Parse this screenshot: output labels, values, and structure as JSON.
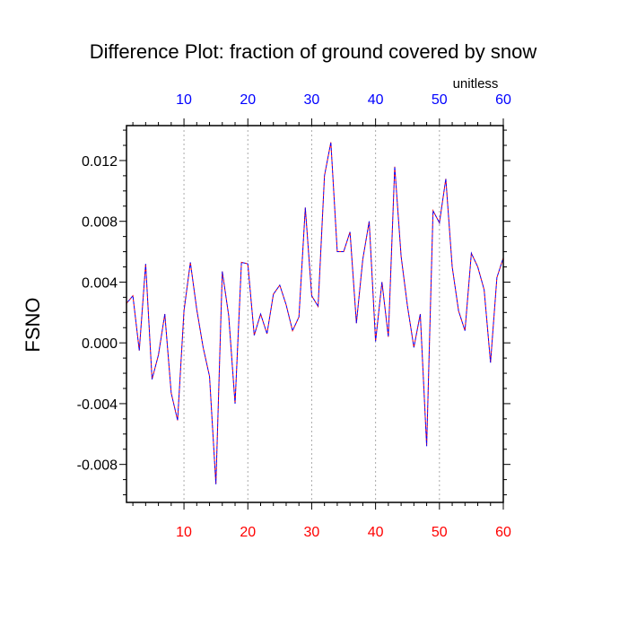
{
  "chart_data": {
    "type": "line",
    "title": "Difference Plot: fraction of ground covered by snow",
    "ylabel": "FSNO",
    "units_label": "unitless",
    "xlim": [
      1,
      60
    ],
    "ylim": [
      -0.0105,
      0.0143
    ],
    "xticks": [
      10,
      20,
      30,
      40,
      50,
      60
    ],
    "xtick_labels": [
      "10",
      "20",
      "30",
      "40",
      "50",
      "60"
    ],
    "yticks": [
      -0.008,
      -0.004,
      0.0,
      0.004,
      0.008,
      0.012
    ],
    "ytick_labels": [
      "-0.008",
      "-0.004",
      "0.000",
      "0.004",
      "0.008",
      "0.012"
    ],
    "grid": "vertical dotted at x major ticks",
    "colors": {
      "top_axis_labels": "#0000ff",
      "bottom_axis_labels": "#ff0000",
      "series_1": "#ff0000",
      "series_2": "#0000ff",
      "grid": "#aaaaaa",
      "frame": "#000000"
    },
    "x": [
      1,
      2,
      3,
      4,
      5,
      6,
      7,
      8,
      9,
      10,
      11,
      12,
      13,
      14,
      15,
      16,
      17,
      18,
      19,
      20,
      21,
      22,
      23,
      24,
      25,
      26,
      27,
      28,
      29,
      30,
      31,
      32,
      33,
      34,
      35,
      36,
      37,
      38,
      39,
      40,
      41,
      42,
      43,
      44,
      45,
      46,
      47,
      48,
      49,
      50,
      51,
      52,
      53,
      54,
      55,
      56,
      57,
      58,
      59,
      60
    ],
    "series": [
      {
        "values": [
          0.0026,
          0.0031,
          -0.0005,
          0.0052,
          -0.0024,
          -0.0008,
          0.0019,
          -0.0033,
          -0.0051,
          0.0021,
          0.0053,
          0.0022,
          -0.0003,
          -0.0022,
          -0.0093,
          0.0047,
          0.0018,
          -0.004,
          0.0053,
          0.0052,
          0.0005,
          0.0019,
          0.0006,
          0.0032,
          0.0038,
          0.0025,
          0.0008,
          0.0017,
          0.0089,
          0.0031,
          0.0024,
          0.011,
          0.0132,
          0.006,
          0.006,
          0.0073,
          0.0013,
          0.0055,
          0.008,
          0.0001,
          0.004,
          0.0004,
          0.0116,
          0.0057,
          0.0024,
          -0.0003,
          0.0019,
          -0.0068,
          0.0087,
          0.0079,
          0.0108,
          0.005,
          0.0021,
          0.0008,
          0.0059,
          0.005,
          0.0035,
          -0.0013,
          0.0043,
          0.0056
        ]
      },
      {
        "values": [
          0.0026,
          0.0031,
          -0.0005,
          0.0052,
          -0.0024,
          -0.0008,
          0.0019,
          -0.0033,
          -0.0051,
          0.0021,
          0.0053,
          0.0022,
          -0.0003,
          -0.0022,
          -0.0093,
          0.0047,
          0.0018,
          -0.004,
          0.0053,
          0.0052,
          0.0005,
          0.0019,
          0.0006,
          0.0032,
          0.0038,
          0.0025,
          0.0008,
          0.0017,
          0.0089,
          0.0031,
          0.0024,
          0.011,
          0.0132,
          0.006,
          0.006,
          0.0073,
          0.0013,
          0.0055,
          0.008,
          0.0001,
          0.004,
          0.0004,
          0.0116,
          0.0057,
          0.0024,
          -0.0003,
          0.0019,
          -0.0068,
          0.0087,
          0.0079,
          0.0108,
          0.005,
          0.0021,
          0.0008,
          0.0059,
          0.005,
          0.0035,
          -0.0013,
          0.0043,
          0.0056
        ]
      }
    ]
  }
}
